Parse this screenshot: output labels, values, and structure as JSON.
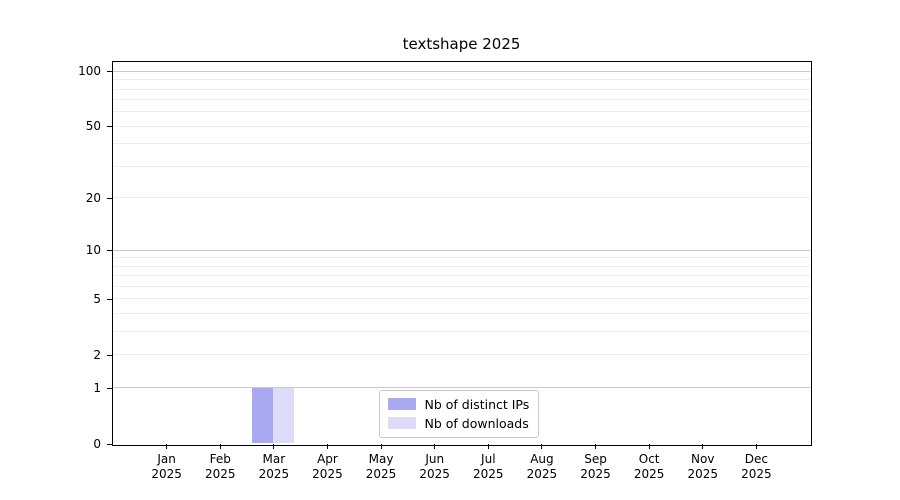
{
  "title": "textshape 2025",
  "chart_data": {
    "type": "bar",
    "title": "textshape 2025",
    "categories": [
      "Jan",
      "Feb",
      "Mar",
      "Apr",
      "May",
      "Jun",
      "Jul",
      "Aug",
      "Sep",
      "Oct",
      "Nov",
      "Dec"
    ],
    "category_year": "2025",
    "series": [
      {
        "name": "Nb of distinct IPs",
        "color": "#a9a9f0",
        "values": [
          0,
          0,
          1,
          0,
          0,
          0,
          0,
          0,
          0,
          0,
          0,
          0
        ]
      },
      {
        "name": "Nb of downloads",
        "color": "#dcdcf8",
        "values": [
          0,
          0,
          1,
          0,
          0,
          0,
          0,
          0,
          0,
          0,
          0,
          0
        ]
      }
    ],
    "yscale": "log1p",
    "ylim": [
      0,
      113
    ],
    "y_ticks": [
      0,
      1,
      2,
      5,
      10,
      20,
      50,
      100
    ],
    "y_minor_gridlines": [
      3,
      4,
      6,
      7,
      8,
      9,
      30,
      40,
      60,
      70,
      80,
      90
    ],
    "grid": true,
    "legend_position": "inside-bottom-center",
    "colors": {
      "grid_major": "#c9c9c9",
      "grid_minor": "#ececec",
      "axis": "#000000",
      "background": "#ffffff",
      "text": "#000000"
    }
  }
}
